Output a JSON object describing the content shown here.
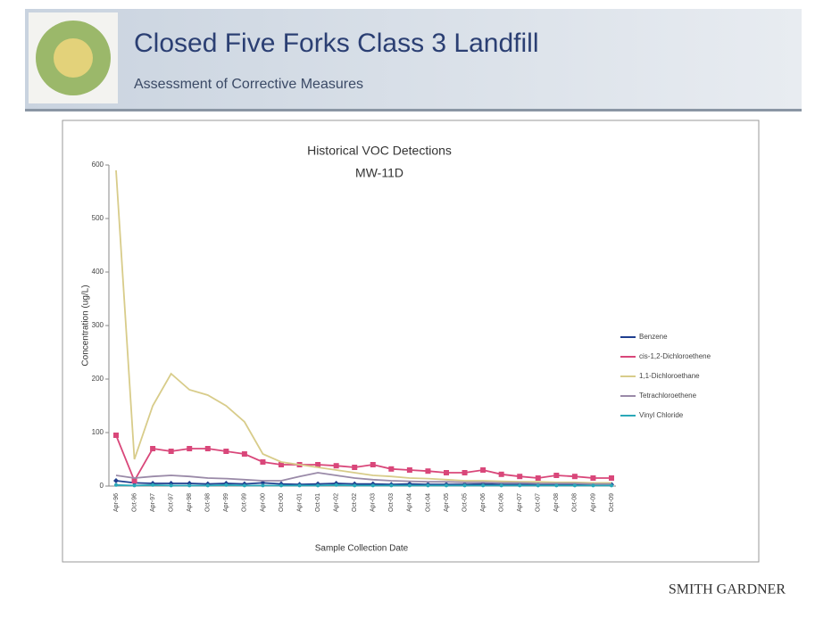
{
  "header": {
    "title": "Closed Five Forks Class 3 Landfill",
    "subtitle": "Assessment of Corrective Measures"
  },
  "footer": {
    "brand": "SMITH GARDNER"
  },
  "chart_data": {
    "type": "line",
    "title": "Historical VOC Detections",
    "subtitle": "MW-11D",
    "y_label": "Concentration (ug/L)",
    "x_label": "Sample Collection Date",
    "categories": [
      "Apr-96",
      "Oct-96",
      "Apr-97",
      "Oct-97",
      "Apr-98",
      "Oct-98",
      "Apr-99",
      "Oct-99",
      "Apr-00",
      "Oct-00",
      "Apr-01",
      "Oct-01",
      "Apr-02",
      "Oct-02",
      "Apr-03",
      "Oct-03",
      "Apr-04",
      "Oct-04",
      "Apr-05",
      "Oct-05",
      "Apr-06",
      "Oct-06",
      "Apr-07",
      "Oct-07",
      "Apr-08",
      "Oct-08",
      "Apr-09",
      "Oct-09"
    ],
    "ylim": [
      0,
      600
    ],
    "yticks": [
      0,
      100,
      200,
      300,
      400,
      500,
      600
    ],
    "series": [
      {
        "name": "Benzene",
        "color": "#1f3f8f",
        "marker": "diamond",
        "values": [
          10,
          6,
          5,
          5,
          5,
          4,
          5,
          4,
          6,
          4,
          3,
          4,
          5,
          4,
          4,
          3,
          4,
          3,
          3,
          3,
          4,
          3,
          3,
          3,
          3,
          3,
          3,
          3
        ]
      },
      {
        "name": "cis-1,2-Dichloroethene",
        "color": "#d9477a",
        "marker": "square",
        "values": [
          95,
          10,
          70,
          65,
          70,
          70,
          65,
          60,
          45,
          40,
          40,
          40,
          38,
          35,
          40,
          32,
          30,
          28,
          25,
          25,
          30,
          22,
          18,
          15,
          20,
          18,
          15,
          15
        ]
      },
      {
        "name": "1,1-Dichloroethane",
        "color": "#d8cc8a",
        "marker": "none",
        "values": [
          590,
          50,
          150,
          210,
          180,
          170,
          150,
          120,
          60,
          45,
          40,
          35,
          30,
          25,
          20,
          18,
          15,
          14,
          12,
          10,
          10,
          9,
          8,
          8,
          7,
          7,
          6,
          6
        ]
      },
      {
        "name": "Tetrachloroethene",
        "color": "#9a8aa8",
        "marker": "none",
        "values": [
          20,
          15,
          18,
          20,
          18,
          15,
          14,
          12,
          10,
          10,
          18,
          25,
          20,
          15,
          12,
          10,
          9,
          8,
          8,
          7,
          7,
          6,
          6,
          5,
          5,
          5,
          4,
          4
        ]
      },
      {
        "name": "Vinyl Chloride",
        "color": "#2aa8b8",
        "marker": "circle",
        "values": [
          2,
          1,
          2,
          1,
          1,
          1,
          2,
          1,
          1,
          1,
          1,
          1,
          2,
          1,
          1,
          1,
          1,
          1,
          1,
          1,
          1,
          1,
          1,
          1,
          1,
          1,
          1,
          1
        ]
      }
    ]
  }
}
